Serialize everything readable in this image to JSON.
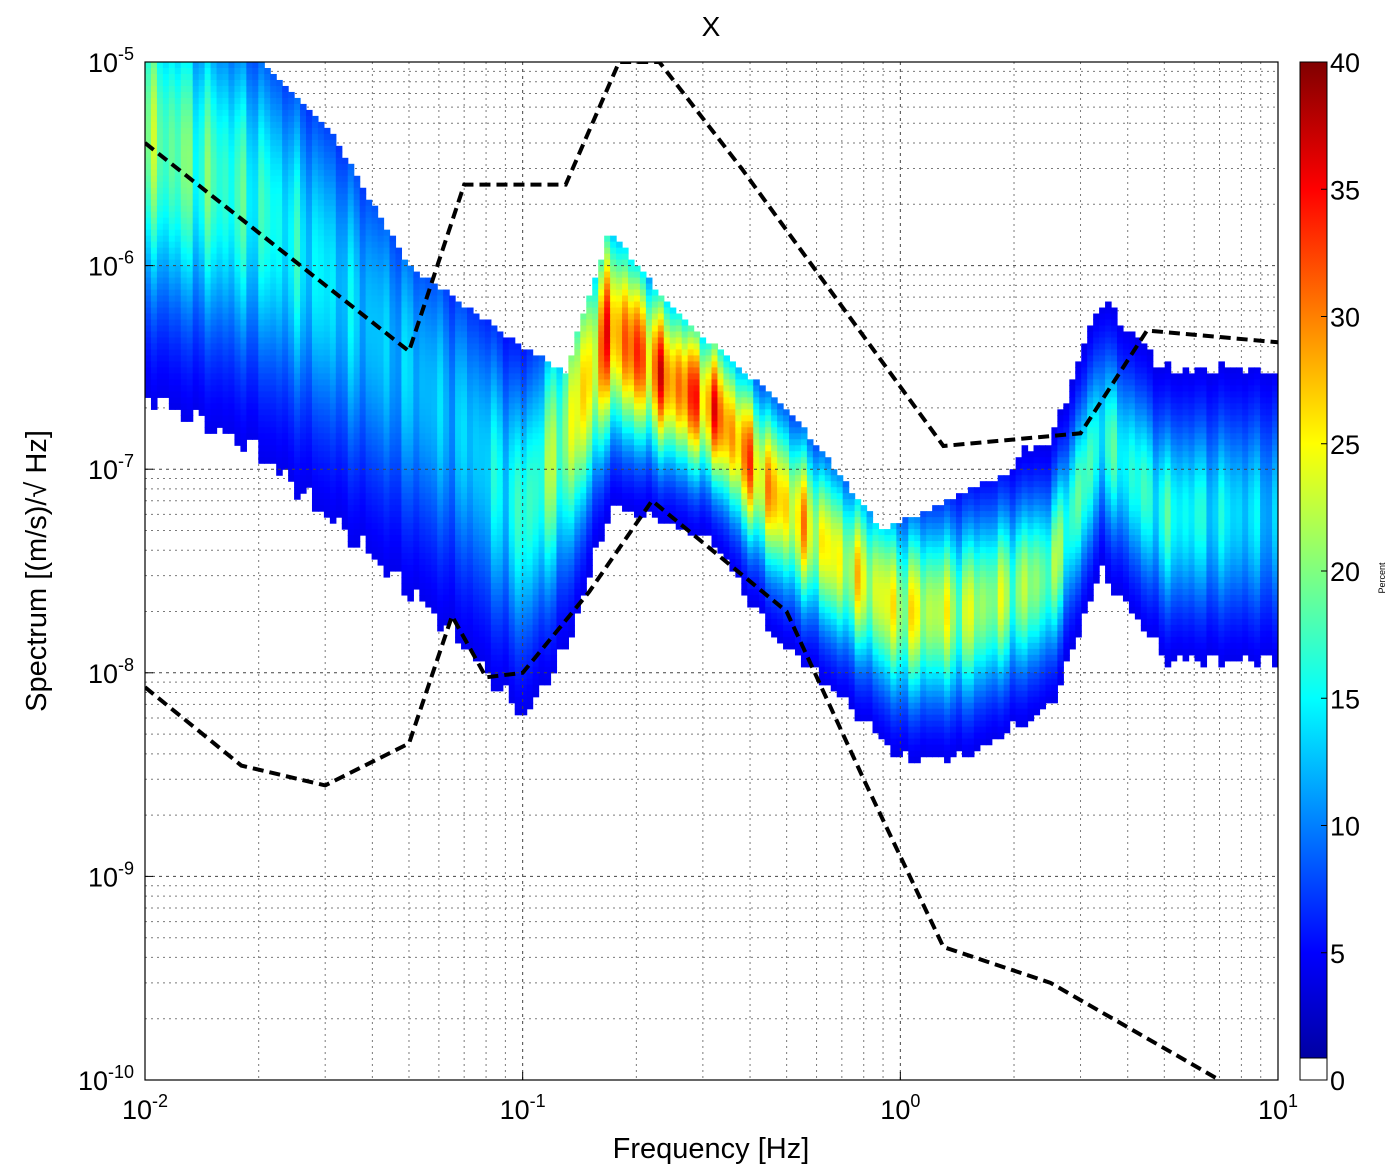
{
  "chart_data": {
    "type": "heatmap",
    "title": "X",
    "xlabel": "Frequency [Hz]",
    "ylabel": "Spectrum [(m/s)/√ Hz]",
    "x_scale": "log",
    "y_scale": "log",
    "xlim": [
      0.01,
      10
    ],
    "ylim": [
      1e-10,
      1e-05
    ],
    "grid": true,
    "x_ticks": [
      {
        "base": "10",
        "exp": "-2"
      },
      {
        "base": "10",
        "exp": "-1"
      },
      {
        "base": "10",
        "exp": "0"
      },
      {
        "base": "10",
        "exp": "1"
      }
    ],
    "y_ticks": [
      {
        "base": "10",
        "exp": "-10"
      },
      {
        "base": "10",
        "exp": "-9"
      },
      {
        "base": "10",
        "exp": "-8"
      },
      {
        "base": "10",
        "exp": "-7"
      },
      {
        "base": "10",
        "exp": "-6"
      },
      {
        "base": "10",
        "exp": "-5"
      }
    ],
    "colorbar": {
      "label": "Percent",
      "range": [
        0,
        40
      ],
      "ticks": [
        "0",
        "5",
        "10",
        "15",
        "20",
        "25",
        "30",
        "35",
        "40"
      ],
      "colormap": "jet"
    },
    "percentile_density": {
      "description_units": "x in Hz, median in (m/s)/sqrt(Hz)",
      "ridge": [
        {
          "x": 0.01,
          "y": 4.5e-06,
          "spread": 0.55,
          "peak": 18
        },
        {
          "x": 0.02,
          "y": 2e-06,
          "spread": 0.55,
          "peak": 14
        },
        {
          "x": 0.04,
          "y": 5e-07,
          "spread": 0.55,
          "peak": 10
        },
        {
          "x": 0.07,
          "y": 1.5e-07,
          "spread": 0.5,
          "peak": 10
        },
        {
          "x": 0.1,
          "y": 6e-08,
          "spread": 0.45,
          "peak": 14
        },
        {
          "x": 0.13,
          "y": 1.5e-07,
          "spread": 0.45,
          "peak": 20
        },
        {
          "x": 0.17,
          "y": 5e-07,
          "spread": 0.35,
          "peak": 30
        },
        {
          "x": 0.21,
          "y": 3.5e-07,
          "spread": 0.3,
          "peak": 30
        },
        {
          "x": 0.24,
          "y": 2.8e-07,
          "spread": 0.28,
          "peak": 30
        },
        {
          "x": 0.32,
          "y": 2e-07,
          "spread": 0.26,
          "peak": 30
        },
        {
          "x": 0.45,
          "y": 8e-08,
          "spread": 0.28,
          "peak": 26
        },
        {
          "x": 0.7,
          "y": 3.5e-08,
          "spread": 0.28,
          "peak": 22
        },
        {
          "x": 1.0,
          "y": 2e-08,
          "spread": 0.3,
          "peak": 22
        },
        {
          "x": 1.5,
          "y": 2e-08,
          "spread": 0.3,
          "peak": 20
        },
        {
          "x": 2.5,
          "y": 3e-08,
          "spread": 0.28,
          "peak": 18
        },
        {
          "x": 3.4,
          "y": 1.5e-07,
          "spread": 0.3,
          "peak": 14
        },
        {
          "x": 5.0,
          "y": 6e-08,
          "spread": 0.32,
          "peak": 14
        },
        {
          "x": 10.0,
          "y": 6e-08,
          "spread": 0.35,
          "peak": 10
        }
      ],
      "upper_envelope": [
        {
          "x": 0.01,
          "y": 1e-05
        },
        {
          "x": 0.02,
          "y": 1e-05
        },
        {
          "x": 0.03,
          "y": 5e-06
        },
        {
          "x": 0.05,
          "y": 1e-06
        },
        {
          "x": 0.1,
          "y": 4e-07
        },
        {
          "x": 0.13,
          "y": 3e-07
        },
        {
          "x": 0.17,
          "y": 1.5e-06
        },
        {
          "x": 0.25,
          "y": 6e-07
        },
        {
          "x": 0.5,
          "y": 2e-07
        },
        {
          "x": 0.9,
          "y": 5e-08
        },
        {
          "x": 2.0,
          "y": 1e-07
        },
        {
          "x": 3.4,
          "y": 1e-06
        },
        {
          "x": 5.0,
          "y": 4e-07
        },
        {
          "x": 10.0,
          "y": 3e-07
        }
      ],
      "lower_envelope": [
        {
          "x": 0.01,
          "y": 2e-07
        },
        {
          "x": 0.03,
          "y": 5e-08
        },
        {
          "x": 0.05,
          "y": 2e-08
        },
        {
          "x": 0.08,
          "y": 8e-09
        },
        {
          "x": 0.1,
          "y": 4e-09
        },
        {
          "x": 0.2,
          "y": 1e-08
        },
        {
          "x": 0.4,
          "y": 8e-09
        },
        {
          "x": 0.7,
          "y": 3e-09
        },
        {
          "x": 1.0,
          "y": 1e-09
        },
        {
          "x": 2.0,
          "y": 2e-09
        },
        {
          "x": 3.4,
          "y": 3e-09
        },
        {
          "x": 5.0,
          "y": 8e-09
        },
        {
          "x": 10.0,
          "y": 8e-09
        }
      ]
    },
    "reference_curves": [
      {
        "style": "dashed-black",
        "points": [
          {
            "x": 0.01,
            "y": 4e-06
          },
          {
            "x": 0.05,
            "y": 3.8e-07
          },
          {
            "x": 0.07,
            "y": 2.5e-06
          },
          {
            "x": 0.13,
            "y": 2.5e-06
          },
          {
            "x": 0.18,
            "y": 1e-05
          },
          {
            "x": 0.23,
            "y": 1e-05
          },
          {
            "x": 0.38,
            "y": 3e-06
          },
          {
            "x": 1.3,
            "y": 1.3e-07
          },
          {
            "x": 3.0,
            "y": 1.5e-07
          },
          {
            "x": 4.5,
            "y": 4.8e-07
          },
          {
            "x": 10.0,
            "y": 4.2e-07
          }
        ]
      },
      {
        "style": "dashed-black",
        "points": [
          {
            "x": 0.01,
            "y": 8.5e-09
          },
          {
            "x": 0.018,
            "y": 3.5e-09
          },
          {
            "x": 0.03,
            "y": 2.8e-09
          },
          {
            "x": 0.05,
            "y": 4.5e-09
          },
          {
            "x": 0.065,
            "y": 1.9e-08
          },
          {
            "x": 0.08,
            "y": 9.5e-09
          },
          {
            "x": 0.1,
            "y": 1e-08
          },
          {
            "x": 0.15,
            "y": 2.5e-08
          },
          {
            "x": 0.22,
            "y": 7e-08
          },
          {
            "x": 0.5,
            "y": 2e-08
          },
          {
            "x": 0.8,
            "y": 3e-09
          },
          {
            "x": 1.3,
            "y": 4.5e-10
          },
          {
            "x": 2.5,
            "y": 3e-10
          },
          {
            "x": 7.0,
            "y": 1e-10
          }
        ]
      }
    ]
  }
}
